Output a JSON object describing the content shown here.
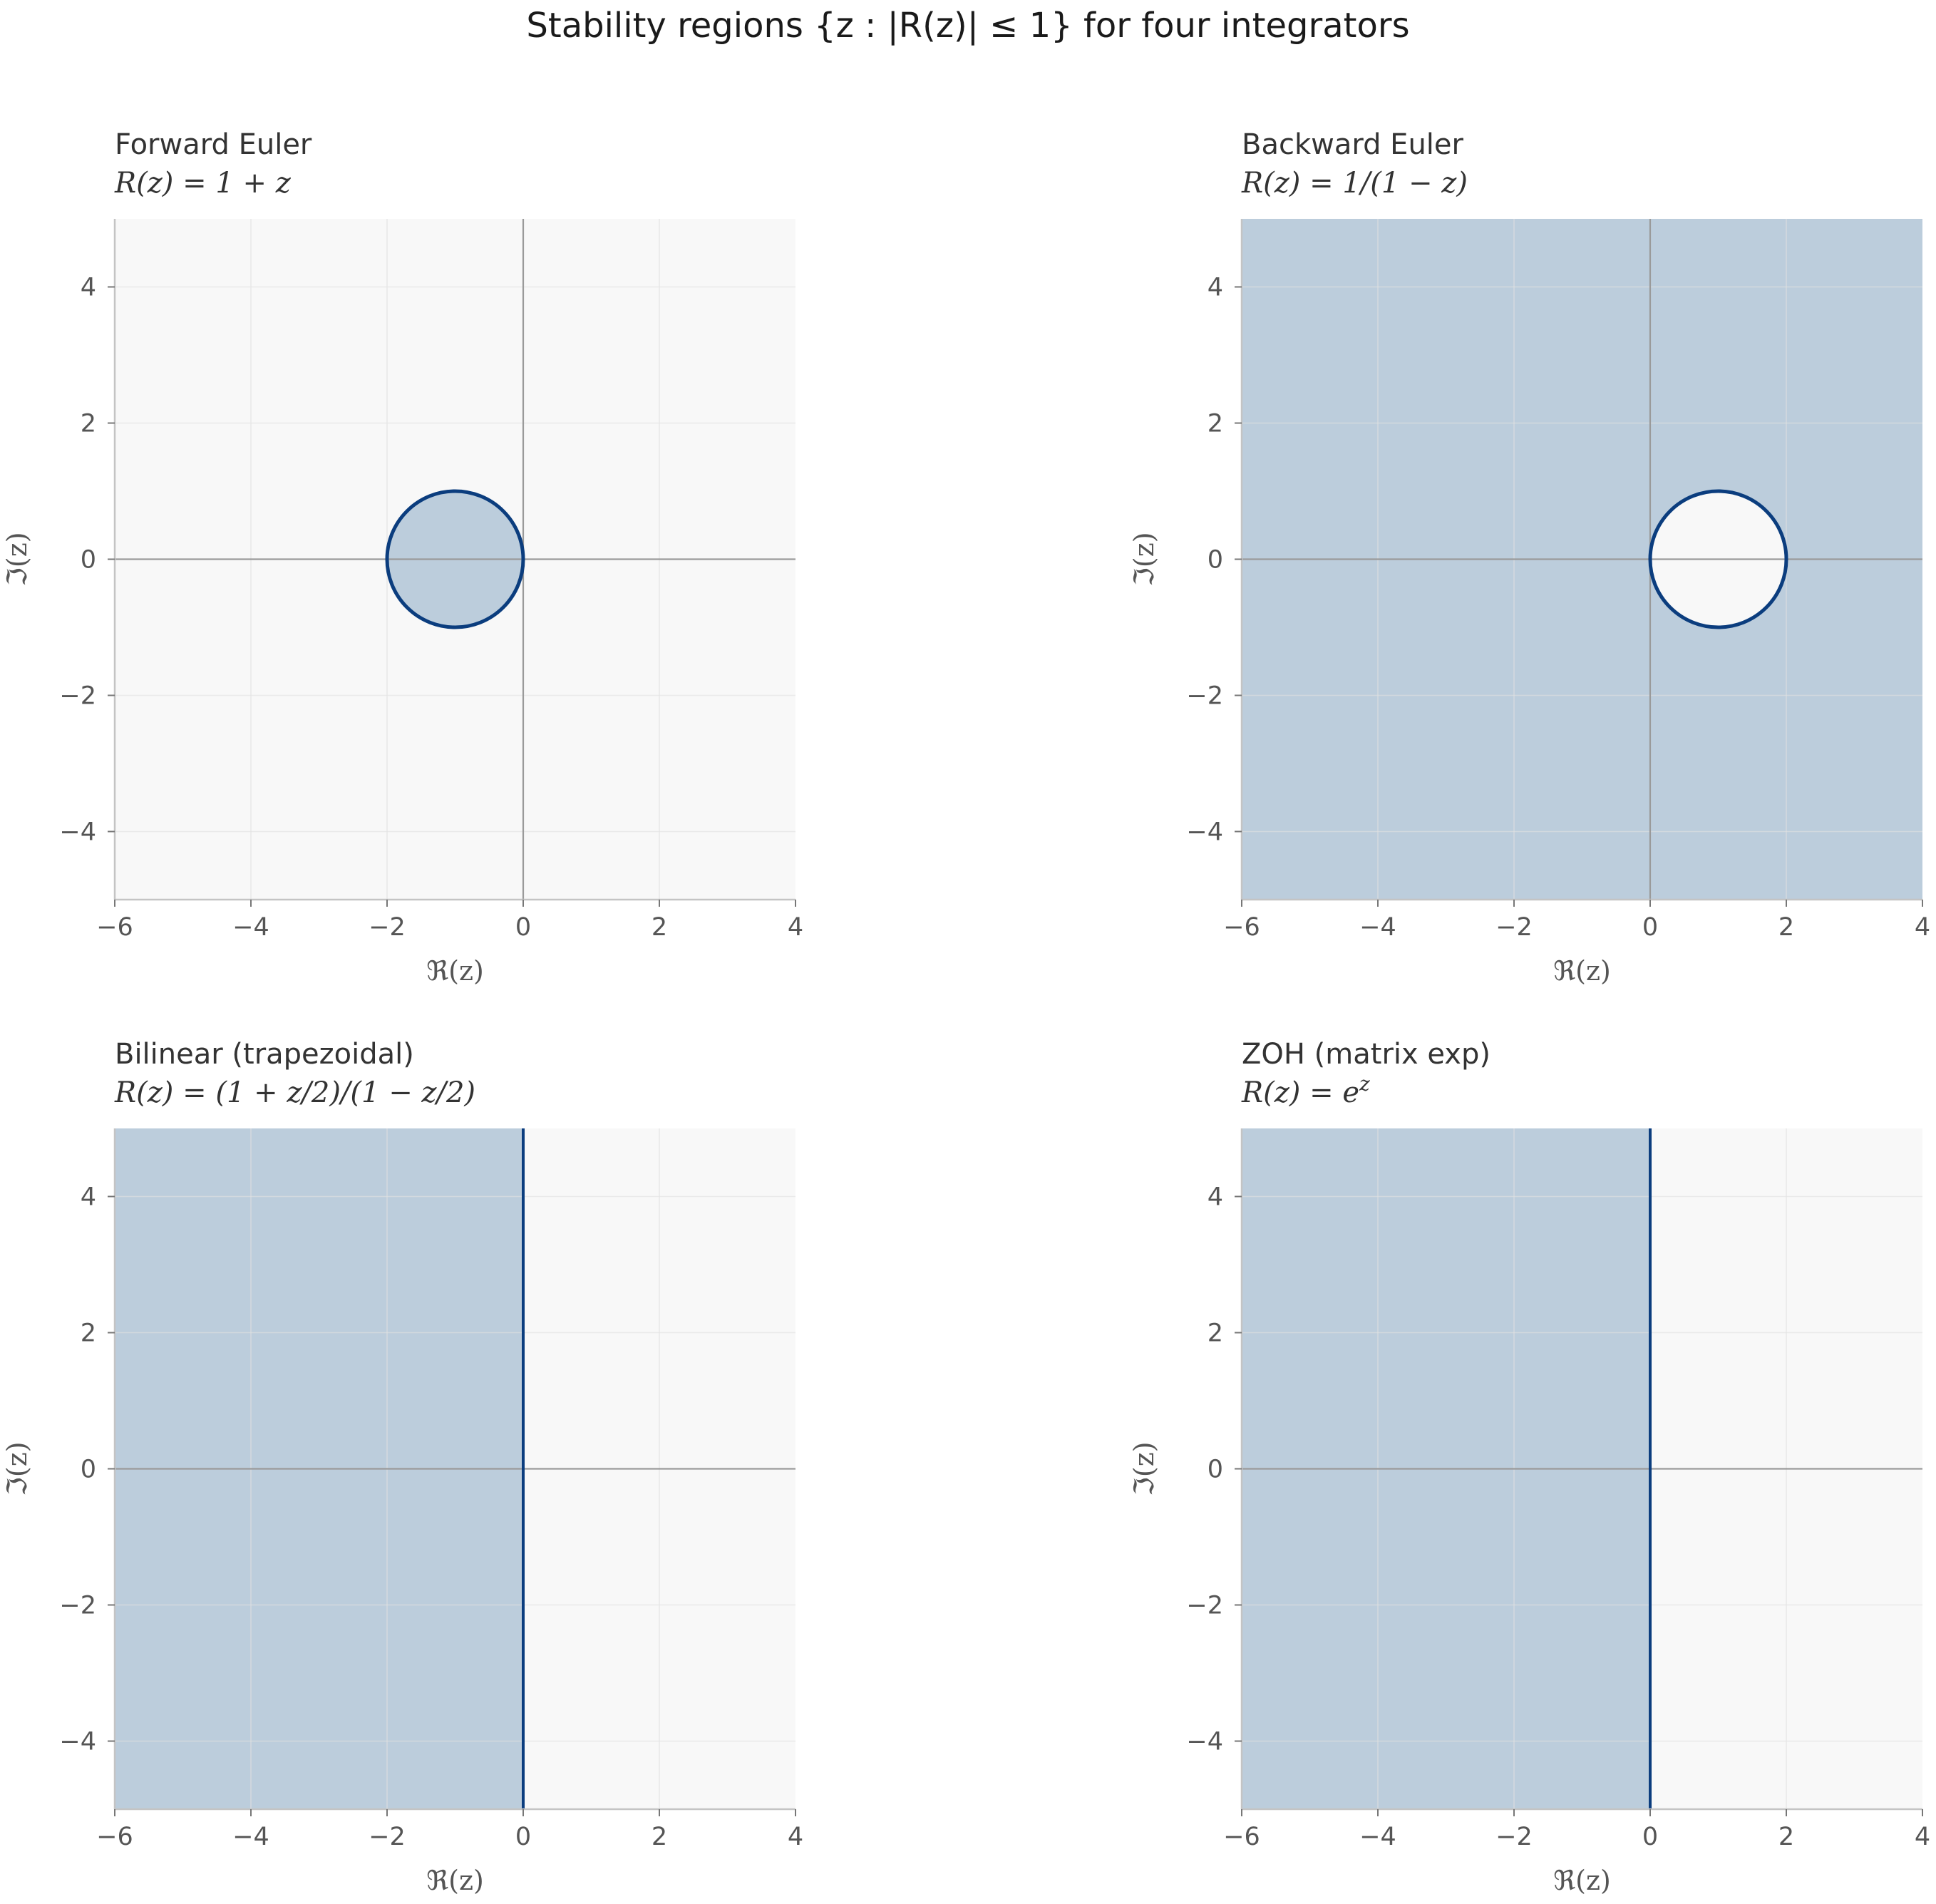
{
  "figure": {
    "title": "Stability regions {z : |R(z)| ≤ 1} for four integrators"
  },
  "colors": {
    "region_fill": "#bccddc",
    "background": "#f8f8f8",
    "boundary": "#0b3d7e",
    "grid": "#e1e1e1",
    "zero_axis": "#9a9a9a",
    "spine": "#c4c4c4"
  },
  "chart_data": [
    {
      "type": "area",
      "title": "Forward Euler",
      "subtitle": "R(z) = 1 + z",
      "xlabel": "ℜ(z)",
      "ylabel": "ℑ(z)",
      "xlim": [
        -6,
        4
      ],
      "ylim": [
        -5,
        5
      ],
      "xticks": [
        -6,
        -4,
        -2,
        0,
        2,
        4
      ],
      "yticks": [
        -4,
        -2,
        0,
        2,
        4
      ],
      "grid": true,
      "region": {
        "kind": "disk",
        "center": [
          -1,
          0
        ],
        "radius": 1
      },
      "boundary": {
        "kind": "circle",
        "center": [
          -1,
          0
        ],
        "radius": 1
      }
    },
    {
      "type": "area",
      "title": "Backward Euler",
      "subtitle": "R(z) = 1/(1 − z)",
      "xlabel": "ℜ(z)",
      "ylabel": "ℑ(z)",
      "xlim": [
        -6,
        4
      ],
      "ylim": [
        -5,
        5
      ],
      "xticks": [
        -6,
        -4,
        -2,
        0,
        2,
        4
      ],
      "yticks": [
        -4,
        -2,
        0,
        2,
        4
      ],
      "grid": true,
      "region": {
        "kind": "outside-disk",
        "center": [
          1,
          0
        ],
        "radius": 1
      },
      "boundary": {
        "kind": "circle",
        "center": [
          1,
          0
        ],
        "radius": 1
      }
    },
    {
      "type": "area",
      "title": "Bilinear (trapezoidal)",
      "subtitle": "R(z) = (1 + z/2)/(1 − z/2)",
      "xlabel": "ℜ(z)",
      "ylabel": "ℑ(z)",
      "xlim": [
        -6,
        4
      ],
      "ylim": [
        -5,
        5
      ],
      "xticks": [
        -6,
        -4,
        -2,
        0,
        2,
        4
      ],
      "yticks": [
        -4,
        -2,
        0,
        2,
        4
      ],
      "grid": true,
      "region": {
        "kind": "half-plane",
        "x_max": 0
      },
      "boundary": {
        "kind": "vertical-line",
        "x": 0
      }
    },
    {
      "type": "area",
      "title": "ZOH (matrix exp)",
      "subtitle": "R(z) = e",
      "subtitle_sup": "z",
      "xlabel": "ℜ(z)",
      "ylabel": "ℑ(z)",
      "xlim": [
        -6,
        4
      ],
      "ylim": [
        -5,
        5
      ],
      "xticks": [
        -6,
        -4,
        -2,
        0,
        2,
        4
      ],
      "yticks": [
        -4,
        -2,
        0,
        2,
        4
      ],
      "grid": true,
      "region": {
        "kind": "half-plane",
        "x_max": 0
      },
      "boundary": {
        "kind": "vertical-line",
        "x": 0
      }
    }
  ]
}
